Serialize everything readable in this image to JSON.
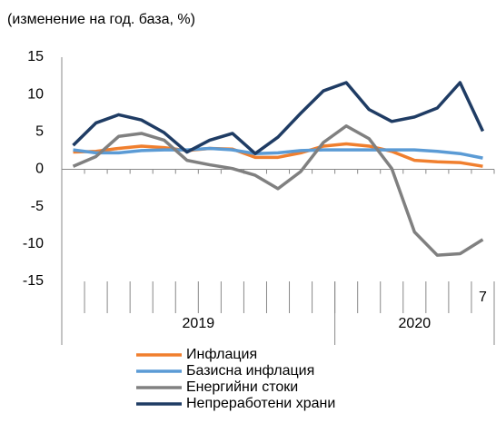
{
  "chart_data": {
    "type": "line",
    "title": "(изменение на год. база, %)",
    "categories": [
      null,
      null,
      null,
      null,
      null,
      null,
      null,
      null,
      null,
      null,
      null,
      null,
      null,
      null,
      null,
      null,
      null,
      null,
      "7"
    ],
    "groups": [
      {
        "label": "2019",
        "span": 12
      },
      {
        "label": "2020",
        "span": 7
      }
    ],
    "series": [
      {
        "name": "Инфлация",
        "color": "#f07f2e",
        "values": [
          2.3,
          2.4,
          2.8,
          3.1,
          2.9,
          2.5,
          2.8,
          2.7,
          1.6,
          1.6,
          2.2,
          3.1,
          3.4,
          3.1,
          2.4,
          1.2,
          1.0,
          0.9,
          0.4
        ]
      },
      {
        "name": "Базисна инфлация",
        "color": "#5b9bd5",
        "values": [
          2.6,
          2.2,
          2.2,
          2.5,
          2.6,
          2.6,
          2.8,
          2.6,
          2.1,
          2.2,
          2.5,
          2.6,
          2.6,
          2.6,
          2.6,
          2.6,
          2.4,
          2.1,
          1.5
        ]
      },
      {
        "name": "Енергийни стоки",
        "color": "#808080",
        "values": [
          0.4,
          1.7,
          4.4,
          4.8,
          3.9,
          1.2,
          0.6,
          0.1,
          -0.8,
          -2.6,
          -0.3,
          3.6,
          5.8,
          4.1,
          0.1,
          -8.4,
          -11.5,
          -11.3,
          -9.4
        ]
      },
      {
        "name": "Непреработени храни",
        "color": "#1f3c64",
        "values": [
          3.2,
          6.2,
          7.3,
          6.6,
          4.9,
          2.3,
          3.9,
          4.8,
          2.1,
          4.3,
          7.5,
          10.5,
          11.6,
          8.0,
          6.4,
          7.0,
          8.2,
          11.6,
          5.1
        ]
      }
    ],
    "ylim": [
      -15,
      15
    ],
    "yticks": [
      15,
      10,
      5,
      0,
      -5,
      -10,
      -15
    ],
    "grid": false
  }
}
